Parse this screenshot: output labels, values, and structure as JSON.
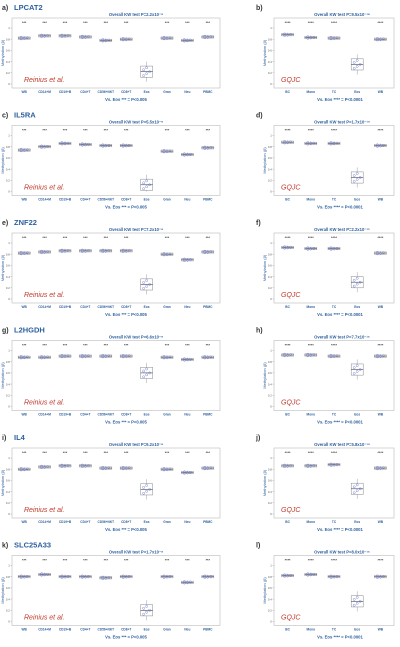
{
  "chart_data": {
    "type": "box",
    "panels": [
      {
        "letter": "a)",
        "gene": "LPCAT2",
        "dataset": "Reinius et al.",
        "test": "Overall KW test P=2.2x10⁻⁸",
        "footer": "Vs. Eos *** = P<0.005",
        "ylabel": "Methylation (β)",
        "categories": [
          "WB",
          "CD14+M",
          "CD19+B",
          "CD4+T",
          "CD56+NKT",
          "CD8+T",
          "Eos",
          "Gran",
          "Neu",
          "PBMC"
        ],
        "sig": [
          "***",
          "***",
          "***",
          "***",
          "***",
          "***",
          "",
          "***",
          "***",
          "***"
        ],
        "medians": [
          0.82,
          0.86,
          0.86,
          0.84,
          0.78,
          0.8,
          0.22,
          0.82,
          0.78,
          0.84
        ]
      },
      {
        "letter": "b)",
        "gene": "",
        "dataset": "GQJC",
        "test": "Overall KW test P=9.5x10⁻¹⁸",
        "footer": "Vs. Eos **** = P<0.0001",
        "ylabel": "Methylation (β)",
        "categories": [
          "BC",
          "Mono",
          "TC",
          "Eos",
          "WB"
        ],
        "sig": [
          "****",
          "****",
          "****",
          "",
          "****"
        ],
        "medians": [
          0.88,
          0.83,
          0.82,
          0.35,
          0.8
        ]
      },
      {
        "letter": "c)",
        "gene": "IL5RA",
        "dataset": "Reinius et al.",
        "test": "Overall KW test P=5.5x10⁻⁸",
        "footer": "Vs. Eos *** = P<0.005",
        "ylabel": "Methylation (β)",
        "categories": [
          "WB",
          "CD14+M",
          "CD19+B",
          "CD4+T",
          "CD56+NKT",
          "CD8+T",
          "Eos",
          "Gran",
          "Neu",
          "PBMC"
        ],
        "sig": [
          "***",
          "***",
          "***",
          "***",
          "***",
          "***",
          "",
          "***",
          "***",
          "***"
        ],
        "medians": [
          0.74,
          0.8,
          0.86,
          0.84,
          0.82,
          0.82,
          0.12,
          0.72,
          0.66,
          0.78
        ]
      },
      {
        "letter": "d)",
        "gene": "",
        "dataset": "GQJC",
        "test": "Overall KW test P=1.7x10⁻¹⁹",
        "footer": "Vs. Eos **** = P<0.0001",
        "ylabel": "Methylation (β)",
        "categories": [
          "BC",
          "Mono",
          "TC",
          "Eos",
          "WB"
        ],
        "sig": [
          "****",
          "****",
          "****",
          "",
          "****"
        ],
        "medians": [
          0.88,
          0.86,
          0.86,
          0.25,
          0.82
        ]
      },
      {
        "letter": "e)",
        "gene": "ZNF22",
        "dataset": "Reinius et al.",
        "test": "Overall KW test P=7.2x10⁻⁸",
        "footer": "Vs. Eos *** = P<0.005",
        "ylabel": "Methylation (β)",
        "categories": [
          "WB",
          "CD14+M",
          "CD19+B",
          "CD4+T",
          "CD56+NKT",
          "CD8+T",
          "Eos",
          "Gran",
          "Neu",
          "PBMC"
        ],
        "sig": [
          "***",
          "***",
          "***",
          "***",
          "***",
          "***",
          "",
          "***",
          "***",
          "***"
        ],
        "medians": [
          0.82,
          0.84,
          0.86,
          0.86,
          0.86,
          0.86,
          0.26,
          0.8,
          0.7,
          0.84
        ]
      },
      {
        "letter": "f)",
        "gene": "",
        "dataset": "GQJC",
        "test": "Overall KW test P=2.2x10⁻¹⁵",
        "footer": "Vs. Eos **** = P<0.0001",
        "ylabel": "Methylation (β)",
        "categories": [
          "BC",
          "Mono",
          "TC",
          "Eos",
          "WB"
        ],
        "sig": [
          "****",
          "****",
          "****",
          "",
          "****"
        ],
        "medians": [
          0.92,
          0.9,
          0.9,
          0.3,
          0.82
        ]
      },
      {
        "letter": "g)",
        "gene": "L2HGDH",
        "dataset": "Reinius et al.",
        "test": "Overall KW test P=6.6x10⁻⁸",
        "footer": "Vs. Eos *** = P<0.005",
        "ylabel": "Methylation (β)",
        "categories": [
          "WB",
          "CD14+M",
          "CD19+B",
          "CD4+T",
          "CD56+NKT",
          "CD8+T",
          "Eos",
          "Gran",
          "Neu",
          "PBMC"
        ],
        "sig": [
          "***",
          "***",
          "***",
          "***",
          "***",
          "***",
          "",
          "***",
          "***",
          "***"
        ],
        "medians": [
          0.88,
          0.88,
          0.9,
          0.9,
          0.9,
          0.9,
          0.6,
          0.88,
          0.84,
          0.88
        ]
      },
      {
        "letter": "h)",
        "gene": "",
        "dataset": "GQJC",
        "test": "Overall KW test P=7.7x10⁻¹⁶",
        "footer": "Vs. Eos **** = P<0.0001",
        "ylabel": "Methylation (β)",
        "categories": [
          "BC",
          "Mono",
          "TC",
          "Eos",
          "WB"
        ],
        "sig": [
          "****",
          "****",
          "****",
          "",
          "****"
        ],
        "medians": [
          0.92,
          0.92,
          0.9,
          0.66,
          0.9
        ]
      },
      {
        "letter": "i)",
        "gene": "IL4",
        "dataset": "Reinius et al.",
        "test": "Overall KW test P=9.2x10⁻⁸",
        "footer": "Vs. Eos *** = P<0.005",
        "ylabel": "Methylation (β)",
        "categories": [
          "WB",
          "CD14+M",
          "CD19+B",
          "CD4+T",
          "CD56+NKT",
          "CD8+T",
          "Eos",
          "Gran",
          "Neu",
          "PBMC"
        ],
        "sig": [
          "***",
          "***",
          "***",
          "***",
          "***",
          "***",
          "",
          "***",
          "***",
          "***"
        ],
        "medians": [
          0.8,
          0.84,
          0.86,
          0.86,
          0.82,
          0.82,
          0.44,
          0.8,
          0.74,
          0.82
        ]
      },
      {
        "letter": "j)",
        "gene": "",
        "dataset": "GQJC",
        "test": "Overall KW test P=5.8x10⁻¹⁹",
        "footer": "Vs. Eos **** = P<0.0001",
        "ylabel": "Methylation (β)",
        "categories": [
          "BC",
          "Mono",
          "TC",
          "Eos",
          "WB"
        ],
        "sig": [
          "****",
          "****",
          "****",
          "",
          "****"
        ],
        "medians": [
          0.86,
          0.86,
          0.88,
          0.45,
          0.82
        ]
      },
      {
        "letter": "k)",
        "gene": "SLC25A33",
        "dataset": "Reinius et al.",
        "test": "Overall KW test P=1.7x10⁻⁸",
        "footer": "Vs. Eos *** = P<0.005",
        "ylabel": "Methylation (β)",
        "categories": [
          "WB",
          "CD14+M",
          "CD19+B",
          "CD4+T",
          "CD56+NKT",
          "CD8+T",
          "Eos",
          "Gran",
          "Neu",
          "PBMC"
        ],
        "sig": [
          "***",
          "***",
          "***",
          "***",
          "***",
          "***",
          "",
          "***",
          "***",
          "***"
        ],
        "medians": [
          0.8,
          0.84,
          0.8,
          0.8,
          0.78,
          0.8,
          0.2,
          0.8,
          0.7,
          0.8
        ]
      },
      {
        "letter": "l)",
        "gene": "",
        "dataset": "GQJC",
        "test": "Overall KW test P=8.0x10⁻¹⁶",
        "footer": "Vs. Eos **** = P<0.0001",
        "ylabel": "Methylation (β)",
        "categories": [
          "BC",
          "Mono",
          "TC",
          "Eos",
          "WB"
        ],
        "sig": [
          "****",
          "****",
          "****",
          "",
          "****"
        ],
        "medians": [
          0.82,
          0.84,
          0.8,
          0.36,
          0.8
        ]
      }
    ],
    "colors": {
      "text": "#333333",
      "accent": "#2c5f9e",
      "dataset": "#c0392b",
      "box": "#888888",
      "dot": "#5b6bd6",
      "sig": "#333333"
    }
  }
}
